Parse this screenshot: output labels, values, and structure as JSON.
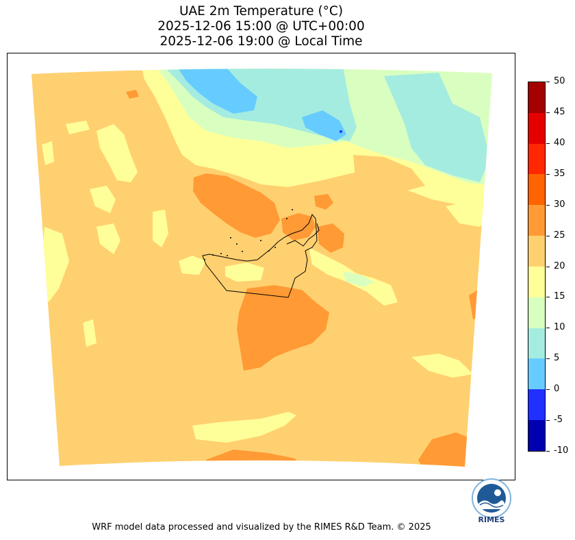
{
  "title": {
    "line1": "UAE 2m Temperature (°C)",
    "line2": "2025-12-06 15:00 @ UTC+00:00",
    "line3": "2025-12-06 19:00 @ Local Time"
  },
  "colorbar": {
    "ticks": [
      "50",
      "45",
      "40",
      "35",
      "30",
      "25",
      "20",
      "15",
      "10",
      "5",
      "0",
      "-5",
      "-10"
    ],
    "colors_top_to_bottom": [
      "#a50000",
      "#e50000",
      "#ff2800",
      "#ff6400",
      "#ff9a35",
      "#ffd070",
      "#ffff99",
      "#d9ffc0",
      "#a4ece0",
      "#66ccff",
      "#2030ff",
      "#0000b0"
    ]
  },
  "legend_colors": {
    "band_15_20": "#ffff99",
    "band_20_25": "#ffd070",
    "band_25_30": "#ff9a35",
    "band_10_15": "#d9ffc0",
    "band_5_10": "#a4ece0",
    "band_0_5": "#66ccff",
    "outline": "#000000"
  },
  "logo": {
    "text": "RIMES",
    "ring_text": "Regional Integrated Multi-Hazard Early Warning System"
  },
  "footer": "WRF model data processed and visualized by the RIMES R&D Team. © 2025"
}
